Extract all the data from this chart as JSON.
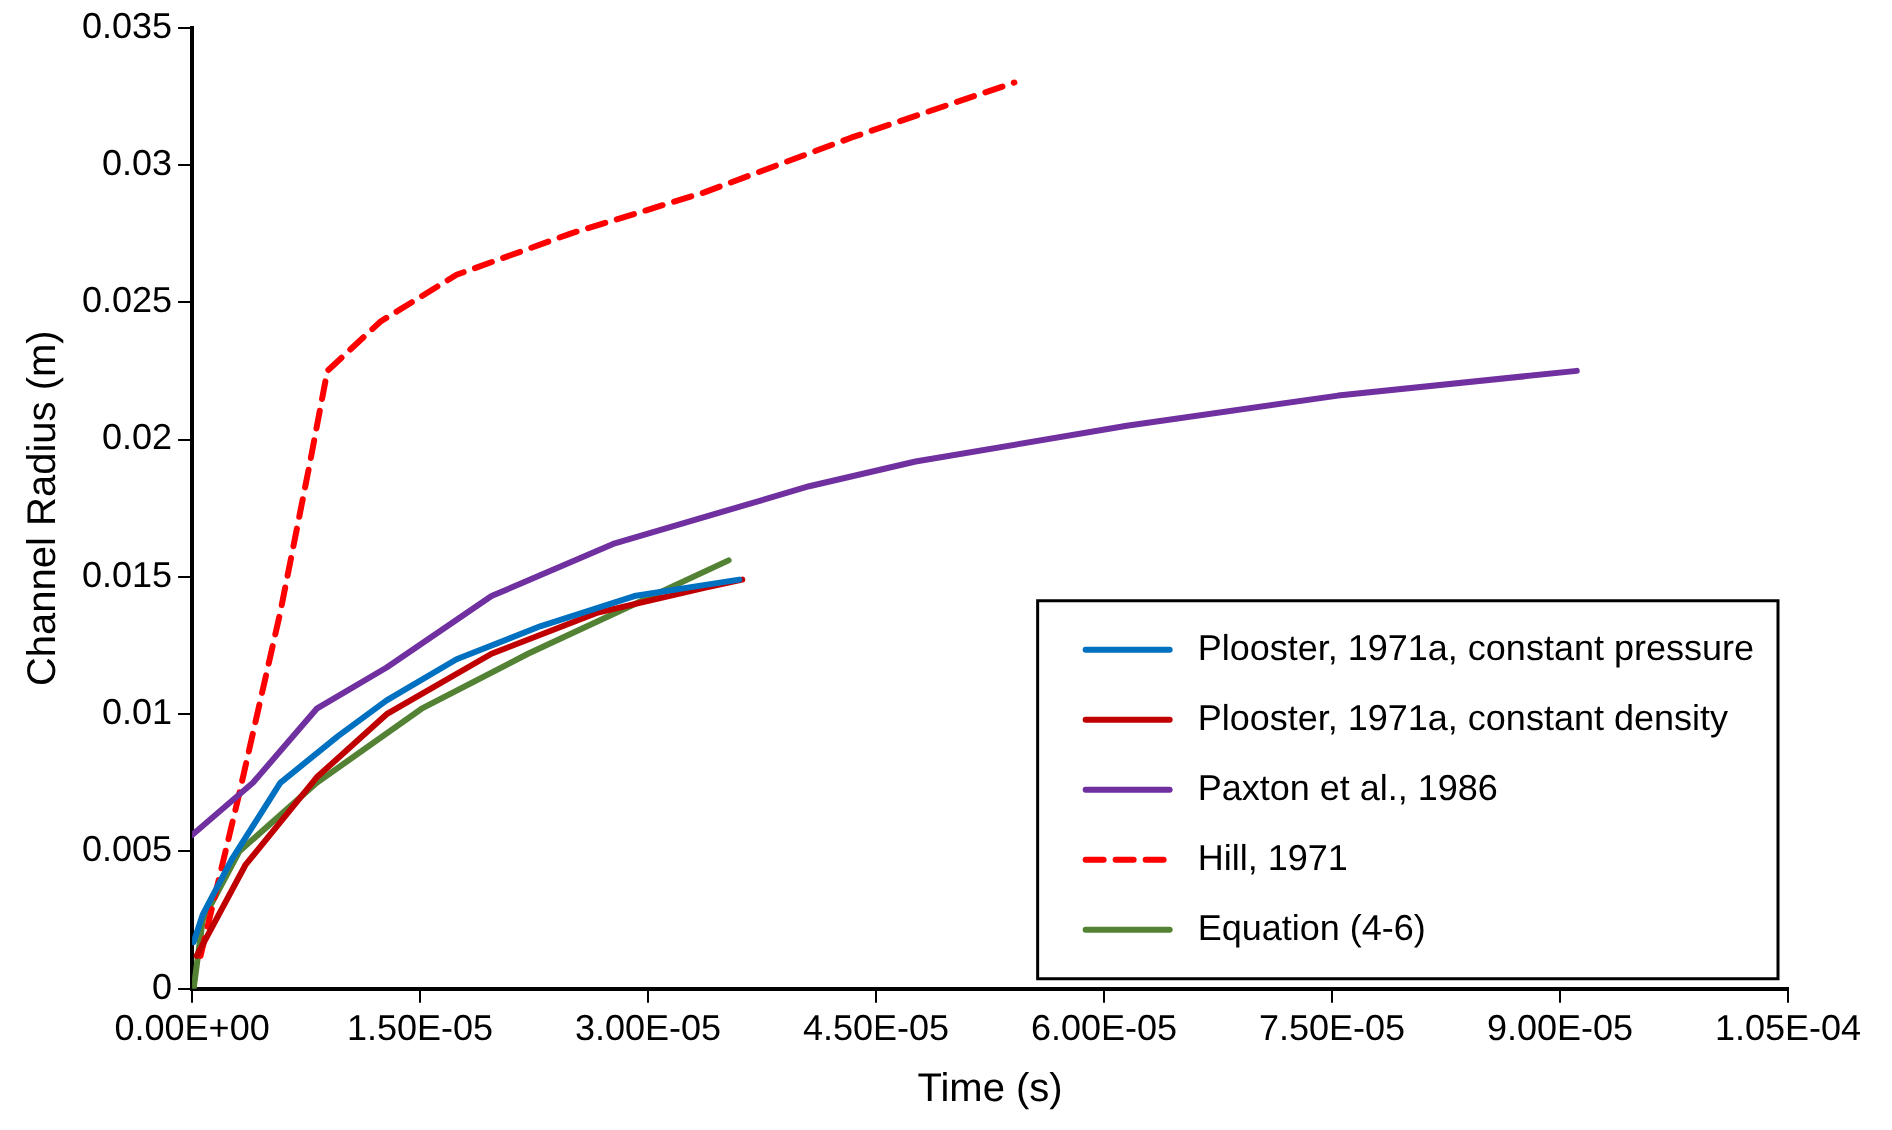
{
  "chart_data": {
    "type": "line",
    "xlabel": "Time (s)",
    "ylabel": "Channel Radius (m)",
    "xlim": [
      0,
      0.000105
    ],
    "ylim": [
      0,
      0.035
    ],
    "xticks": [
      {
        "value": 0,
        "label": "0.00E+00"
      },
      {
        "value": 1.5e-05,
        "label": "1.50E-05"
      },
      {
        "value": 3e-05,
        "label": "3.00E-05"
      },
      {
        "value": 4.5e-05,
        "label": "4.50E-05"
      },
      {
        "value": 6e-05,
        "label": "6.00E-05"
      },
      {
        "value": 7.5e-05,
        "label": "7.50E-05"
      },
      {
        "value": 9e-05,
        "label": "9.00E-05"
      },
      {
        "value": 0.000105,
        "label": "1.05E-04"
      }
    ],
    "yticks": [
      0,
      0.005,
      0.01,
      0.015,
      0.02,
      0.025,
      0.03,
      0.035
    ],
    "grid": false,
    "legend": "bottom right",
    "marker": "none",
    "series": [
      {
        "name": "Plooster, 1971a, constant pressure",
        "color": "#0070c0",
        "x": [
          1e-07,
          7e-07,
          2.6e-06,
          5.8e-06,
          9.6e-06,
          1.28e-05,
          1.74e-05,
          2.29e-05,
          2.91e-05,
          3.6e-05
        ],
        "values": [
          0.0017,
          0.0027,
          0.0047,
          0.0075,
          0.0092,
          0.0105,
          0.012,
          0.0132,
          0.0143,
          0.0149
        ]
      },
      {
        "name": "Plooster, 1971a, constant density",
        "color": "#c00000",
        "x": [
          3e-07,
          3.5e-06,
          8.2e-06,
          1.28e-05,
          1.97e-05,
          2.67e-05,
          3.37e-05,
          3.62e-05
        ],
        "values": [
          0.0012,
          0.0045,
          0.0077,
          0.01,
          0.0122,
          0.0137,
          0.0146,
          0.0149
        ]
      },
      {
        "name": "Paxton et al., 1986",
        "color": "#7030a0",
        "x": [
          0,
          4e-06,
          8.2e-06,
          1.28e-05,
          1.97e-05,
          2.77e-05,
          4.06e-05,
          4.76e-05,
          6.15e-05,
          7.54e-05,
          9.11e-05
        ],
        "values": [
          0.0056,
          0.0075,
          0.0102,
          0.0117,
          0.0143,
          0.0162,
          0.0183,
          0.0192,
          0.0205,
          0.0216,
          0.0225
        ]
      },
      {
        "name": "Hill, 1971",
        "color": "#ff0000",
        "line_style": "dashed",
        "x": [
          5.6e-07,
          3.06e-06,
          5.8e-06,
          7.7e-06,
          8.9e-06,
          1.24e-05,
          1.74e-05,
          2.49e-05,
          3.37e-05,
          4.34e-05,
          5.41e-05
        ],
        "values": [
          0.0012,
          0.007,
          0.0137,
          0.019,
          0.0225,
          0.0243,
          0.026,
          0.0275,
          0.029,
          0.031,
          0.033
        ]
      },
      {
        "name": "Equation (4-6)",
        "color": "#548235",
        "x": [
          1e-07,
          7e-07,
          3.1e-06,
          8.2e-06,
          1.51e-05,
          2.21e-05,
          2.91e-05,
          3.53e-05
        ],
        "values": [
          0,
          0.0025,
          0.005,
          0.0075,
          0.0102,
          0.0122,
          0.014,
          0.0156
        ]
      }
    ]
  }
}
